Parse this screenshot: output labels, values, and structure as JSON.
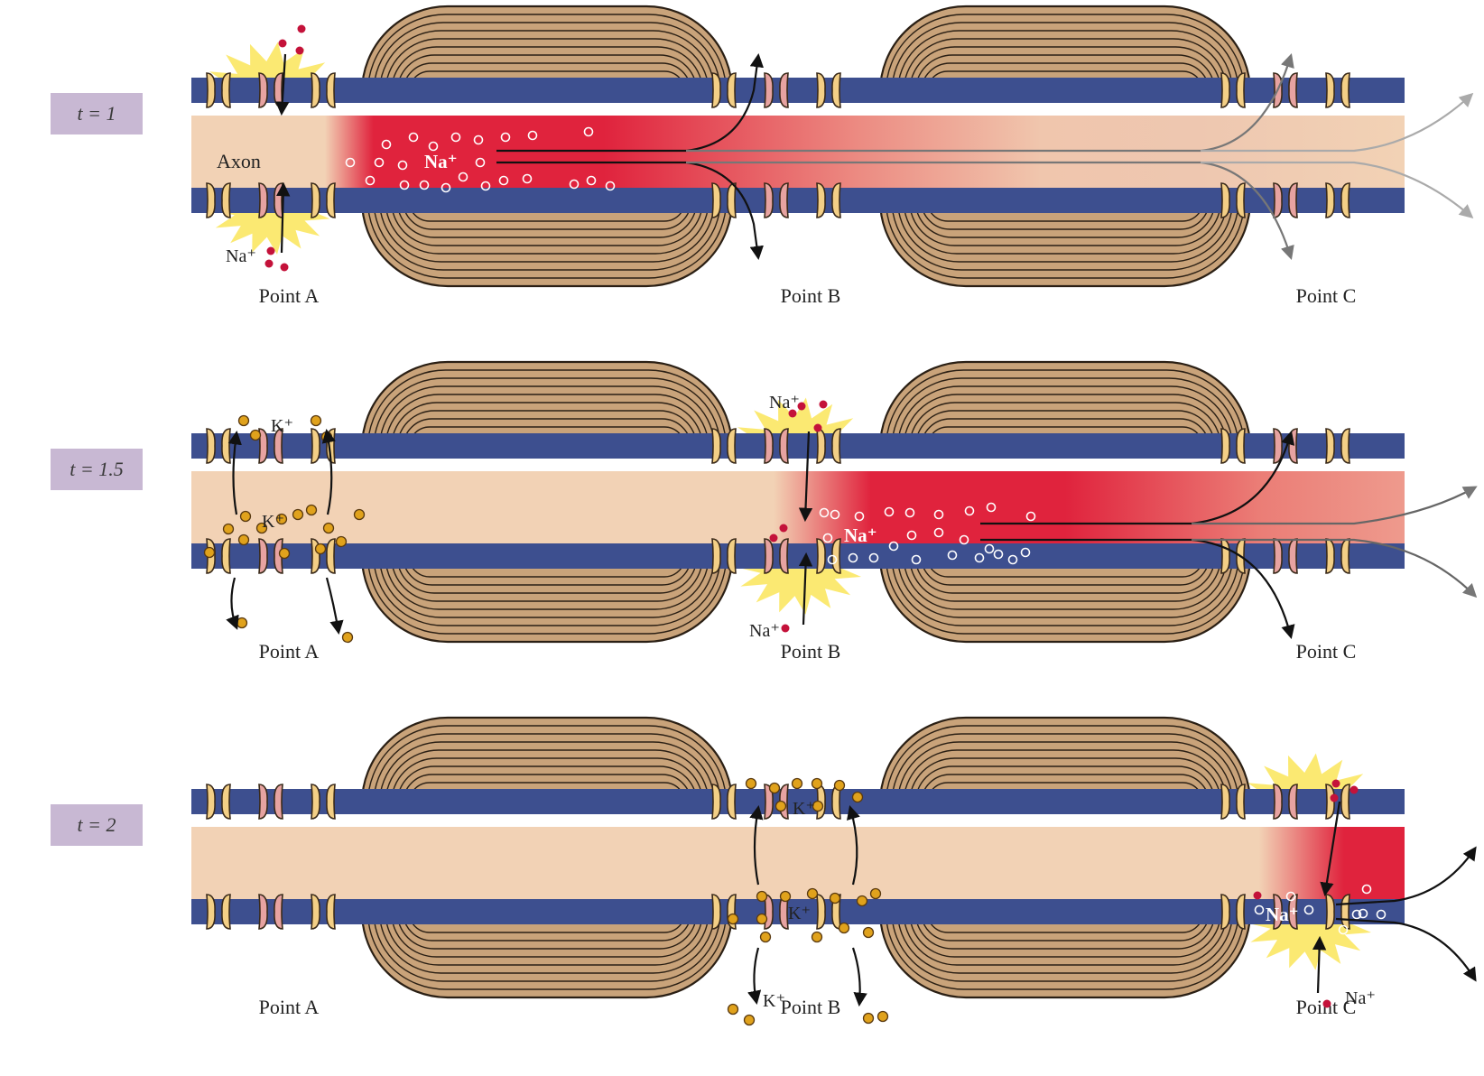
{
  "panels": [
    {
      "time_label": "t = 1",
      "points": [
        "Point A",
        "Point B",
        "Point C"
      ],
      "axon_label": "Axon",
      "na_inside": "Na⁺",
      "na_outside": "Na⁺"
    },
    {
      "time_label": "t = 1.5",
      "points": [
        "Point A",
        "Point B",
        "Point C"
      ],
      "k_outside": "K⁺",
      "k_inside": "K⁺",
      "na_top": "Na⁺",
      "na_inside": "Na⁺",
      "na_bottom": "Na⁺"
    },
    {
      "time_label": "t = 2",
      "points": [
        "Point A",
        "Point B",
        "Point C"
      ],
      "k_top": "K⁺",
      "k_inside": "K⁺",
      "k_bottom": "K⁺",
      "na_inside": "Na⁺",
      "na_outside": "Na⁺"
    }
  ],
  "colors": {
    "membrane": "#3d4f8f",
    "axoplasm": "#f2d2b5",
    "myelin": "#c9a37a",
    "na_ion": "#c4123a",
    "k_ion": "#e0a21c",
    "depolarized": "#e0233d",
    "flash": "#fbe86a",
    "label_box": "#c8b8d3"
  },
  "icons": [
    "k-channel-icon",
    "na-channel-icon",
    "na-ion-icon",
    "k-ion-icon",
    "flow-arrow-icon"
  ]
}
